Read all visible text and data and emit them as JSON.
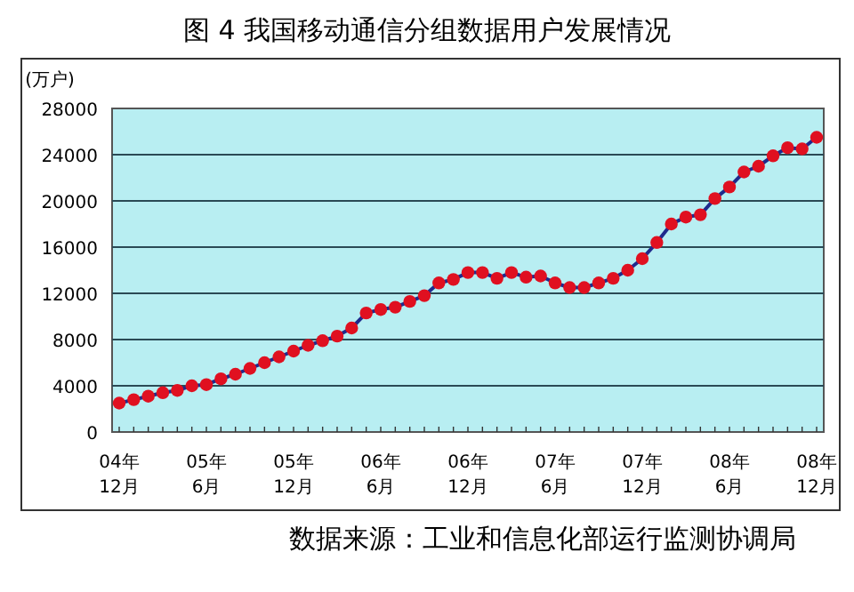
{
  "chart_data": {
    "type": "line",
    "title": "图 4    我国移动通信分组数据用户发展情况",
    "ylabel": "(万户)",
    "categories": [
      "04年\n12月",
      null,
      null,
      null,
      null,
      null,
      "05年\n6月",
      null,
      null,
      null,
      null,
      null,
      "05年\n12月",
      null,
      null,
      null,
      null,
      null,
      "06年\n6月",
      null,
      null,
      null,
      null,
      null,
      "06年\n12月",
      null,
      null,
      null,
      null,
      null,
      "07年\n6月",
      null,
      null,
      null,
      null,
      null,
      "07年\n12月",
      null,
      null,
      null,
      null,
      null,
      "08年\n6月",
      null,
      null,
      null,
      null,
      null,
      "08年\n12月"
    ],
    "series": [
      {
        "color": "#1f2a8c",
        "colors": [
          "#e01020",
          "#e01020",
          "#e01020",
          "#e01020",
          "#e01020",
          "#e01020",
          "#e01020",
          "#e01020",
          "#e01020",
          "#e01020",
          "#e01020",
          "#e01020",
          "#e01020",
          "#e01020",
          "#e01020",
          "#e01020",
          "#e01020",
          "#e01020",
          "#e01020",
          "#e01020",
          "#e01020",
          "#e01020",
          "#e01020",
          "#e01020",
          "#e01020",
          "#e01020",
          "#e01020",
          "#e01020",
          "#e01020",
          "#e01020",
          "#e01020",
          "#e01020",
          "#e01020",
          "#e01020",
          "#e01020",
          "#e01020",
          "#e01020",
          "#e01020",
          "#e01020",
          "#e01020",
          "#e01020",
          "#e01020",
          "#e01020",
          "#e01020",
          "#e01020",
          "#e01020",
          "#e01020",
          "#e01020",
          "#e01020"
        ],
        "values": [
          2500,
          2800,
          3100,
          3400,
          3600,
          4000,
          4100,
          4600,
          5000,
          5500,
          6000,
          6500,
          7000,
          7500,
          7900,
          8300,
          9000,
          10300,
          10600,
          10800,
          11300,
          11800,
          12900,
          13200,
          13800,
          13800,
          13300,
          13800,
          13400,
          13500,
          12900,
          12500,
          12500,
          12900,
          13300,
          14000,
          15000,
          16400,
          18000,
          18600,
          18800,
          20200,
          21200,
          22500,
          23000,
          23900,
          24600,
          24500,
          25500
        ]
      }
    ],
    "marker": "circle",
    "ylim": [
      0,
      28000
    ],
    "yticks": [
      0,
      4000,
      8000,
      12000,
      16000,
      20000,
      24000,
      28000
    ],
    "grid": "y",
    "annotations": [
      "数据来源：工业和信息化部运行监测协调局"
    ]
  }
}
